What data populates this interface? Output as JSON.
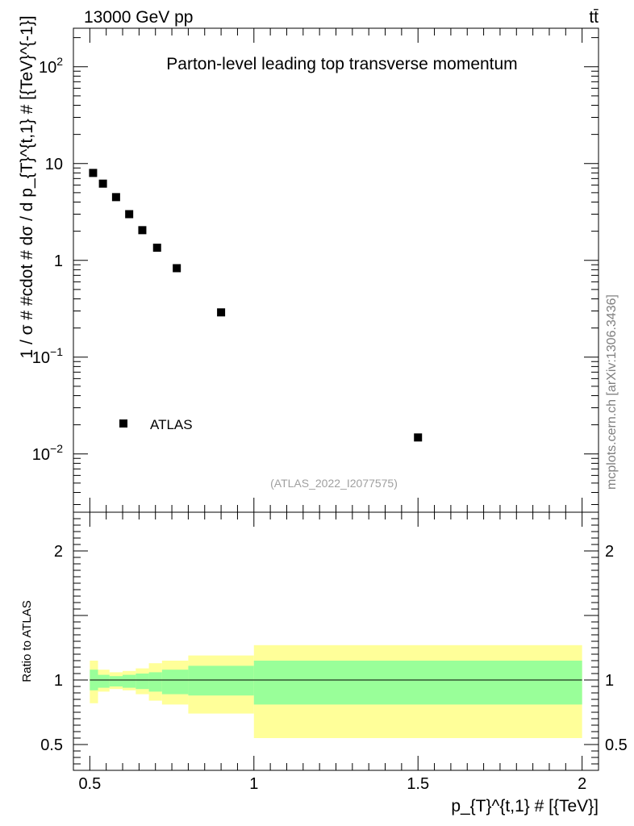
{
  "header": {
    "left": "13000 GeV pp",
    "right": "tt̄"
  },
  "side_label": "mcplots.cern.ch [arXiv:1306.3436]",
  "chart_data": [
    {
      "type": "scatter",
      "title": "Parton-level leading top transverse momentum",
      "ylabel": "1 / σ # #cdot # dσ / d p_{T}^{t,1} # [{TeV}^{-1}]",
      "y_scale": "log",
      "ylim": [
        0.0025,
        250
      ],
      "xlim": [
        0.45,
        2.05
      ],
      "y_ticks": [
        {
          "value": 0.01,
          "base": "10",
          "exp": "−2"
        },
        {
          "value": 0.1,
          "base": "10",
          "exp": "−1"
        },
        {
          "value": 1,
          "base": "1",
          "exp": ""
        },
        {
          "value": 10,
          "base": "10",
          "exp": ""
        },
        {
          "value": 100,
          "base": "10",
          "exp": "2"
        }
      ],
      "series": [
        {
          "name": "ATLAS",
          "color": "#000000",
          "x": [
            0.51,
            0.54,
            0.58,
            0.62,
            0.66,
            0.705,
            0.765,
            0.9,
            1.5
          ],
          "y": [
            8.0,
            6.2,
            4.5,
            3.0,
            2.05,
            1.35,
            0.83,
            0.29,
            0.0148
          ]
        }
      ],
      "legend": {
        "placement": "bottom-left",
        "label": "ATLAS"
      },
      "annotation": "(ATLAS_2022_I2077575)"
    },
    {
      "type": "area",
      "ylabel": "Ratio to ATLAS",
      "xlabel": "p_{T}^{t,1} # [{TeV}]",
      "xlim": [
        0.45,
        2.05
      ],
      "ylim": [
        0.3,
        2.3
      ],
      "x_ticks": [
        {
          "value": 0.5,
          "label": "0.5"
        },
        {
          "value": 1,
          "label": "1"
        },
        {
          "value": 1.5,
          "label": "1.5"
        },
        {
          "value": 2,
          "label": "2"
        }
      ],
      "y_ticks": [
        {
          "value": 0.5,
          "label": "0.5"
        },
        {
          "value": 1,
          "label": "1"
        },
        {
          "value": 2,
          "label": "2"
        }
      ],
      "reference_line": 1,
      "bins": [
        {
          "x0": 0.5,
          "x1": 0.525,
          "inner": [
            0.92,
            1.08
          ],
          "outer": [
            0.82,
            1.15
          ]
        },
        {
          "x0": 0.525,
          "x1": 0.56,
          "inner": [
            0.94,
            1.04
          ],
          "outer": [
            0.91,
            1.08
          ]
        },
        {
          "x0": 0.56,
          "x1": 0.6,
          "inner": [
            0.95,
            1.03
          ],
          "outer": [
            0.93,
            1.06
          ]
        },
        {
          "x0": 0.6,
          "x1": 0.64,
          "inner": [
            0.94,
            1.04
          ],
          "outer": [
            0.92,
            1.07
          ]
        },
        {
          "x0": 0.64,
          "x1": 0.68,
          "inner": [
            0.93,
            1.05
          ],
          "outer": [
            0.89,
            1.09
          ]
        },
        {
          "x0": 0.68,
          "x1": 0.72,
          "inner": [
            0.91,
            1.06
          ],
          "outer": [
            0.84,
            1.13
          ]
        },
        {
          "x0": 0.72,
          "x1": 0.8,
          "inner": [
            0.89,
            1.08
          ],
          "outer": [
            0.81,
            1.15
          ]
        },
        {
          "x0": 0.8,
          "x1": 1.0,
          "inner": [
            0.88,
            1.11
          ],
          "outer": [
            0.74,
            1.19
          ]
        },
        {
          "x0": 1.0,
          "x1": 2.0,
          "inner": [
            0.81,
            1.15
          ],
          "outer": [
            0.55,
            1.27
          ]
        }
      ],
      "colors": {
        "inner": "#99ff99",
        "outer": "#ffff99",
        "line": "#000000"
      }
    }
  ]
}
